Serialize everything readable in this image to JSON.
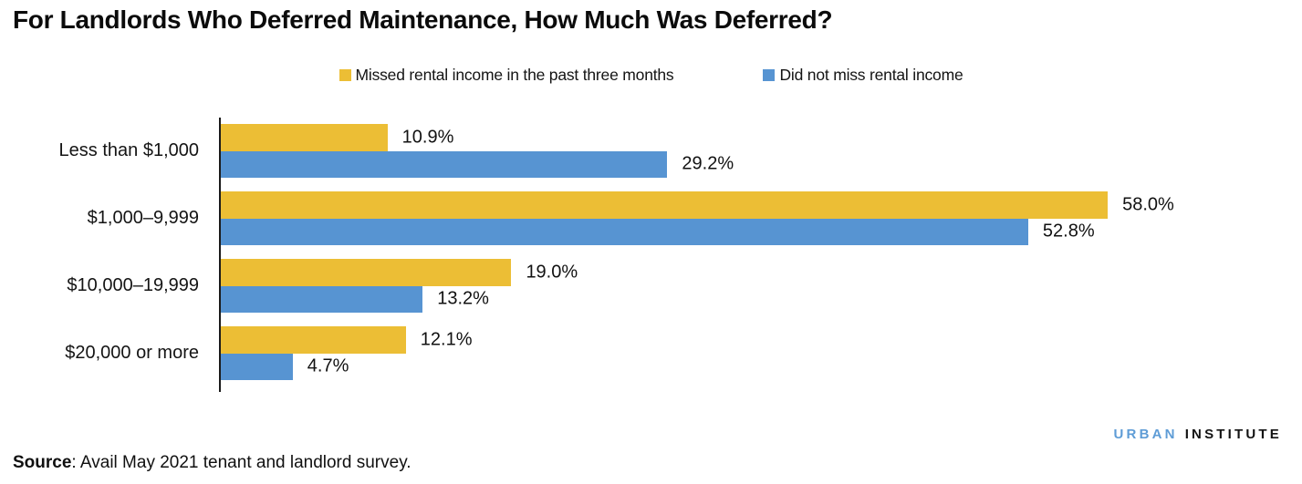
{
  "title": "For Landlords Who Deferred Maintenance, How Much Was Deferred?",
  "chart_data": {
    "type": "bar",
    "orientation": "horizontal",
    "title": "For Landlords Who Deferred Maintenance, How Much Was Deferred?",
    "categories": [
      "Less than $1,000",
      "$1,000–9,999",
      "$10,000–19,999",
      "$20,000 or more"
    ],
    "series": [
      {
        "name": "Missed rental income in the past three months",
        "color": "#ECBE35",
        "values": [
          10.9,
          58.0,
          19.0,
          12.1
        ],
        "labels": [
          "10.9%",
          "58.0%",
          "19.0%",
          "12.1%"
        ]
      },
      {
        "name": "Did not miss rental income",
        "color": "#5794D2",
        "values": [
          29.2,
          52.8,
          13.2,
          4.7
        ],
        "labels": [
          "29.2%",
          "52.8%",
          "13.2%",
          "4.7%"
        ]
      }
    ],
    "xlim": [
      0,
      60
    ],
    "grid": false,
    "legend_position": "top",
    "value_labels": "outside-end"
  },
  "footer": {
    "source_label": "Source",
    "source_text": ": Avail May 2021 tenant and landlord survey."
  },
  "logo": {
    "word1": "URBAN",
    "word2": "INSTITUTE",
    "word1_color": "#5E9CD6",
    "word2_color": "#131313"
  }
}
